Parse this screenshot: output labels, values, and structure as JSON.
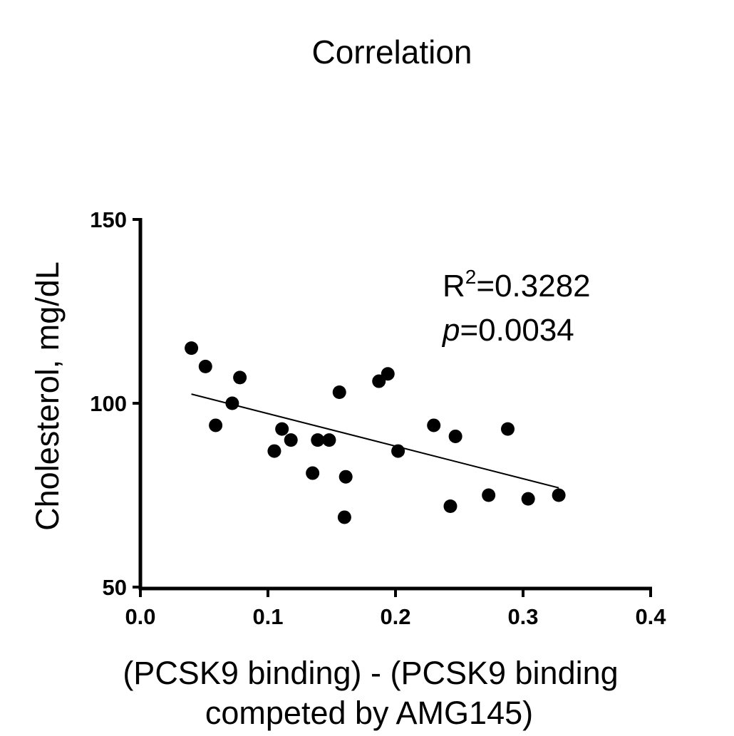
{
  "chart_data": {
    "type": "scatter",
    "title": "Correlation",
    "xlabel_line1": "(PCSK9 binding) - (PCSK9 binding",
    "xlabel_line2": "competed by AMG145)",
    "ylabel": "Cholesterol, mg/dL",
    "xlim": [
      0.0,
      0.4
    ],
    "ylim": [
      50,
      150
    ],
    "x_ticks": [
      "0.0",
      "0.1",
      "0.2",
      "0.3",
      "0.4"
    ],
    "y_ticks": [
      "50",
      "100",
      "150"
    ],
    "grid": false,
    "annotations": {
      "r2_label": "R",
      "r2_sup": "2",
      "r2_value": "=0.3282",
      "p_label": "p",
      "p_value": "=0.0034"
    },
    "points": [
      {
        "x": 0.04,
        "y": 115
      },
      {
        "x": 0.051,
        "y": 110
      },
      {
        "x": 0.059,
        "y": 94
      },
      {
        "x": 0.072,
        "y": 100
      },
      {
        "x": 0.078,
        "y": 107
      },
      {
        "x": 0.105,
        "y": 87
      },
      {
        "x": 0.111,
        "y": 93
      },
      {
        "x": 0.118,
        "y": 90
      },
      {
        "x": 0.135,
        "y": 81
      },
      {
        "x": 0.139,
        "y": 90
      },
      {
        "x": 0.148,
        "y": 90
      },
      {
        "x": 0.156,
        "y": 103
      },
      {
        "x": 0.16,
        "y": 69
      },
      {
        "x": 0.161,
        "y": 80
      },
      {
        "x": 0.187,
        "y": 106
      },
      {
        "x": 0.194,
        "y": 108
      },
      {
        "x": 0.202,
        "y": 87
      },
      {
        "x": 0.23,
        "y": 94
      },
      {
        "x": 0.243,
        "y": 72
      },
      {
        "x": 0.247,
        "y": 91
      },
      {
        "x": 0.273,
        "y": 75
      },
      {
        "x": 0.288,
        "y": 93
      },
      {
        "x": 0.304,
        "y": 74
      },
      {
        "x": 0.328,
        "y": 75
      }
    ],
    "trendline": {
      "x": [
        0.04,
        0.328
      ],
      "y": [
        102.5,
        77
      ]
    }
  }
}
